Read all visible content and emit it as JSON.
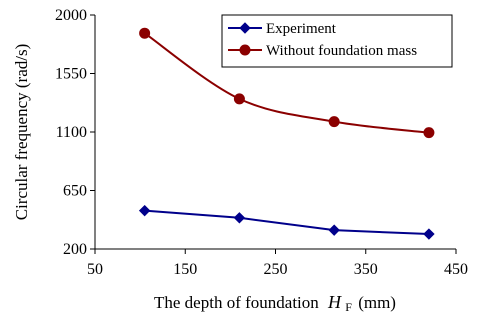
{
  "chart_data": {
    "type": "line",
    "xlabel": "The depth of foundation",
    "xlabel_symbol": "H",
    "xlabel_subscript": "F",
    "xlabel_unit": "(mm)",
    "ylabel": "Circular frequency (rad/s)",
    "xlim": [
      50,
      450
    ],
    "ylim": [
      200,
      2000
    ],
    "x_ticks": [
      50,
      150,
      250,
      350,
      450
    ],
    "y_ticks": [
      200,
      650,
      1100,
      1550,
      2000
    ],
    "grid": false,
    "legend_position": "top-right",
    "series": [
      {
        "name": "Experiment",
        "color": "#00008b",
        "marker": "diamond",
        "smooth": false,
        "x": [
          105,
          210,
          315,
          420
        ],
        "y": [
          495,
          440,
          345,
          315
        ]
      },
      {
        "name": "Without foundation mass",
        "color": "#8b0000",
        "marker": "circle",
        "smooth": true,
        "x": [
          105,
          210,
          315,
          420
        ],
        "y": [
          1860,
          1355,
          1180,
          1095
        ]
      }
    ]
  }
}
